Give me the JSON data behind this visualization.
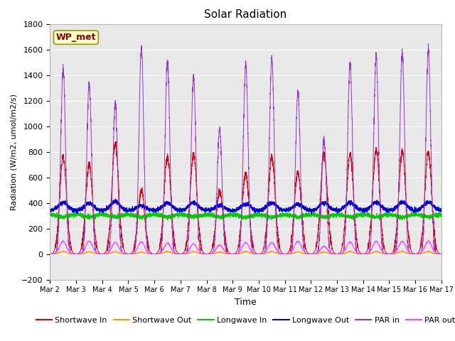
{
  "title": "Solar Radiation",
  "xlabel": "Time",
  "ylabel": "Radiation (W/m2, umol/m2/s)",
  "ylim": [
    -200,
    1800
  ],
  "yticks": [
    -200,
    0,
    200,
    400,
    600,
    800,
    1000,
    1200,
    1400,
    1600,
    1800
  ],
  "num_days": 15,
  "points_per_day": 288,
  "bg_color": "#e8e8e8",
  "label_box": "WP_met",
  "series": {
    "shortwave_in": {
      "color": "#dd0000",
      "label": "Shortwave In"
    },
    "shortwave_out": {
      "color": "#ff9900",
      "label": "Shortwave Out"
    },
    "longwave_in": {
      "color": "#00cc00",
      "label": "Longwave In"
    },
    "longwave_out": {
      "color": "#0000dd",
      "label": "Longwave Out"
    },
    "par_in": {
      "color": "#9933cc",
      "label": "PAR in"
    },
    "par_out": {
      "color": "#ff44ff",
      "label": "PAR out"
    }
  },
  "x_tick_labels": [
    "Mar 2",
    "Mar 3",
    "Mar 4",
    "Mar 5",
    "Mar 6",
    "Mar 7",
    "Mar 8",
    "Mar 9",
    "Mar 10",
    "Mar 11",
    "Mar 12",
    "Mar 13",
    "Mar 14",
    "Mar 15",
    "Mar 16",
    "Mar 17"
  ],
  "sw_in_peaks": [
    760,
    700,
    860,
    500,
    760,
    780,
    490,
    630,
    760,
    640,
    780,
    780,
    820,
    800,
    800
  ],
  "par_in_peaks": [
    1450,
    1340,
    1175,
    1620,
    1510,
    1380,
    980,
    1490,
    1540,
    1270,
    900,
    1500,
    1550,
    1580,
    1590
  ],
  "par_out_peaks": [
    100,
    100,
    90,
    95,
    85,
    80,
    70,
    90,
    90,
    100,
    60,
    95,
    100,
    100,
    100
  ],
  "sw_out_peaks": [
    20,
    18,
    18,
    15,
    20,
    20,
    15,
    20,
    20,
    18,
    15,
    20,
    20,
    20,
    20
  ],
  "lw_in_base": 310,
  "lw_out_base": 340
}
